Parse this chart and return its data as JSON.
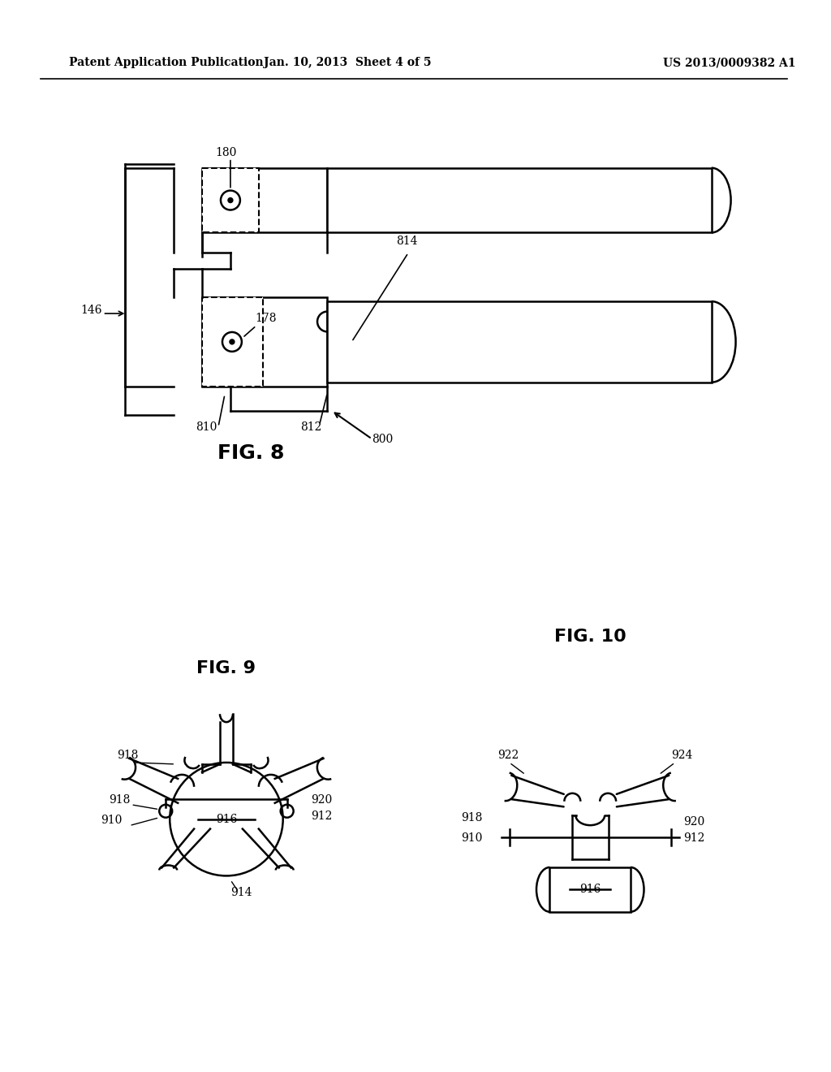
{
  "header_left": "Patent Application Publication",
  "header_center": "Jan. 10, 2013  Sheet 4 of 5",
  "header_right": "US 2013/0009382 A1",
  "fig8_label": "FIG. 8",
  "fig9_label": "FIG. 9",
  "fig10_label": "FIG. 10",
  "bg_color": "#ffffff",
  "line_color": "#000000"
}
